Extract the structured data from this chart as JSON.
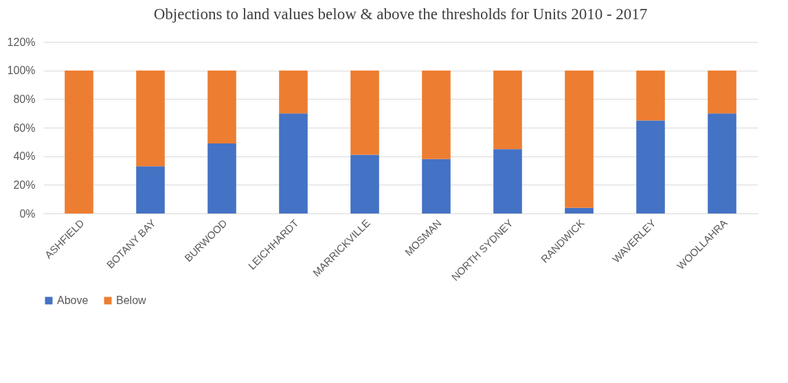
{
  "chart_data": {
    "type": "bar",
    "title": "Objections to land values below & above the thresholds for Units 2010 - 2017",
    "categories": [
      "ASHFIELD",
      "BOTANY BAY",
      "BURWOOD",
      "LEICHHARDT",
      "MARRICKVILLE",
      "MOSMAN",
      "NORTH SYDNEY",
      "RANDWICK",
      "WAVERLEY",
      "WOOLLAHRA"
    ],
    "series": [
      {
        "name": "Above",
        "color": "#4472c4",
        "values": [
          0,
          33,
          49,
          70,
          41,
          38,
          45,
          4,
          65,
          70
        ]
      },
      {
        "name": "Below",
        "color": "#ed7d31",
        "values": [
          100,
          67,
          51,
          30,
          59,
          62,
          55,
          96,
          35,
          30
        ]
      }
    ],
    "stacked": true,
    "ylim": [
      0,
      120
    ],
    "yticks": [
      {
        "value": 0,
        "label": "0%"
      },
      {
        "value": 20,
        "label": "20%"
      },
      {
        "value": 40,
        "label": "40%"
      },
      {
        "value": 60,
        "label": "60%"
      },
      {
        "value": 80,
        "label": "80%"
      },
      {
        "value": 100,
        "label": "100%"
      },
      {
        "value": 120,
        "label": "120%"
      }
    ],
    "grid": "y",
    "legend": "bottom"
  }
}
